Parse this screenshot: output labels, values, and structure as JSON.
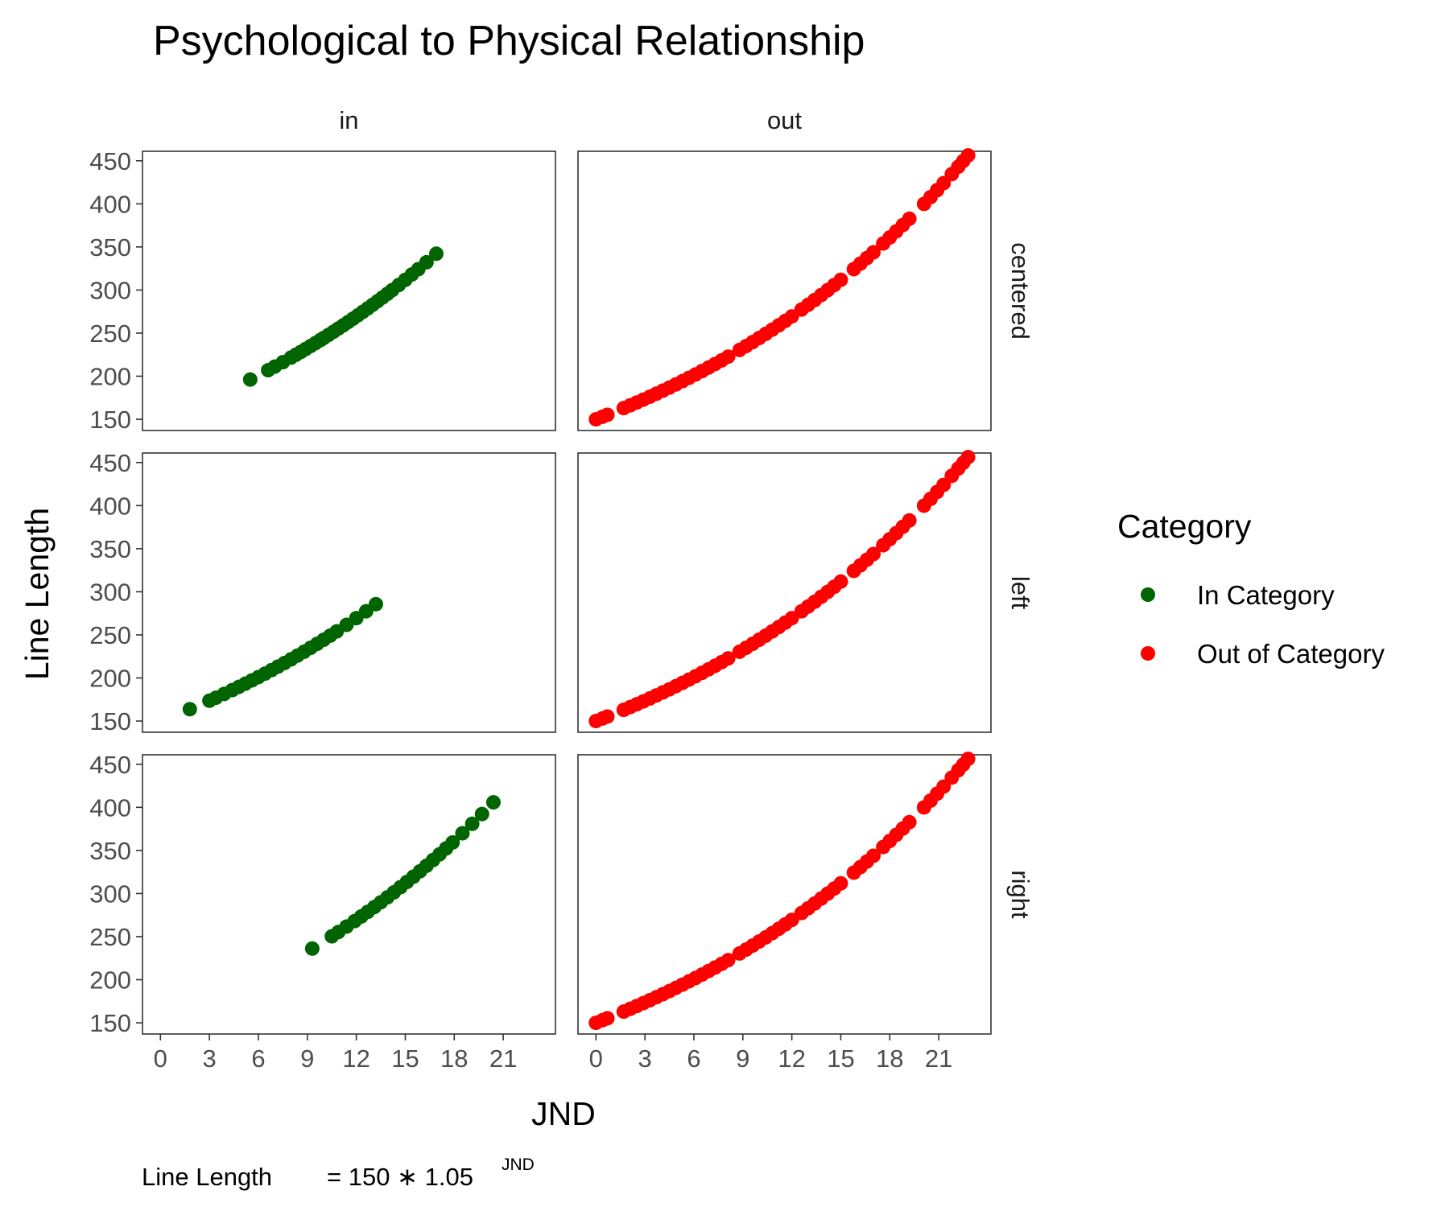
{
  "chart_data": {
    "type": "scatter",
    "title": "Psychological to Physical Relationship",
    "xlabel": "JND",
    "ylabel": "Line Length",
    "caption": {
      "lhs": "Line Length",
      "rhs": "= 150 ∗ 1.05",
      "exponent": "JND"
    },
    "facet_cols": [
      "in",
      "out"
    ],
    "facet_rows": [
      "centered",
      "left",
      "right"
    ],
    "xlim": [
      -1.1,
      24.2
    ],
    "ylim": [
      137,
      461
    ],
    "x_ticks": [
      0,
      3,
      6,
      9,
      12,
      15,
      18,
      21
    ],
    "x_tick_labels": [
      "0",
      "3",
      "6",
      "9",
      "12",
      "15",
      "18",
      "21"
    ],
    "y_ticks": [
      150,
      200,
      250,
      300,
      350,
      400,
      450
    ],
    "y_tick_labels": [
      "150",
      "200",
      "250",
      "300",
      "350",
      "400",
      "450"
    ],
    "grid": false,
    "legend": {
      "title": "Category",
      "position": "right",
      "items": [
        {
          "label": "In Category",
          "color": "#006400"
        },
        {
          "label": "Out of Category",
          "color": "#ff0000"
        }
      ]
    },
    "formula": {
      "base": 150,
      "growth": 1.05
    },
    "panels": [
      {
        "row": "centered",
        "col": "in",
        "series": "In Category",
        "x": [
          5.5,
          6.6,
          7.0,
          7.5,
          8.0,
          8.3,
          8.6,
          8.9,
          9.2,
          9.5,
          9.8,
          10.0,
          10.3,
          10.6,
          10.9,
          11.2,
          11.5,
          11.8,
          12.1,
          12.4,
          12.7,
          13.0,
          13.3,
          13.6,
          13.9,
          14.2,
          14.6,
          15.0,
          15.4,
          15.8,
          16.3,
          16.9
        ]
      },
      {
        "row": "left",
        "col": "in",
        "series": "In Category",
        "x": [
          1.8,
          3.0,
          3.4,
          3.9,
          4.4,
          4.8,
          5.2,
          5.6,
          6.0,
          6.4,
          6.8,
          7.2,
          7.6,
          8.0,
          8.4,
          8.8,
          9.2,
          9.6,
          10.0,
          10.4,
          10.8,
          11.4,
          12.0,
          12.6,
          13.2
        ]
      },
      {
        "row": "right",
        "col": "in",
        "series": "In Category",
        "x": [
          9.3,
          10.5,
          10.9,
          11.4,
          11.9,
          12.3,
          12.7,
          13.1,
          13.5,
          13.9,
          14.3,
          14.7,
          15.1,
          15.5,
          15.9,
          16.3,
          16.7,
          17.1,
          17.5,
          17.9,
          18.5,
          19.1,
          19.7,
          20.4
        ]
      },
      {
        "row": "centered",
        "col": "out",
        "series": "Out of Category",
        "x": [
          0.0,
          0.4,
          0.7,
          1.7,
          2.1,
          2.5,
          2.9,
          3.3,
          3.7,
          4.1,
          4.5,
          4.9,
          5.3,
          5.7,
          6.1,
          6.5,
          6.9,
          7.3,
          7.7,
          8.1,
          8.8,
          9.2,
          9.6,
          10.0,
          10.4,
          10.8,
          11.2,
          11.6,
          12.0,
          12.6,
          13.0,
          13.4,
          13.8,
          14.2,
          14.6,
          15.0,
          15.8,
          16.2,
          16.6,
          17.0,
          17.6,
          18.0,
          18.4,
          18.8,
          19.2,
          20.1,
          20.5,
          20.9,
          21.3,
          21.8,
          22.2,
          22.5,
          22.8
        ]
      },
      {
        "row": "left",
        "col": "out",
        "series": "Out of Category",
        "x": [
          0.0,
          0.4,
          0.7,
          1.7,
          2.1,
          2.5,
          2.9,
          3.3,
          3.7,
          4.1,
          4.5,
          4.9,
          5.3,
          5.7,
          6.1,
          6.5,
          6.9,
          7.3,
          7.7,
          8.1,
          8.8,
          9.2,
          9.6,
          10.0,
          10.4,
          10.8,
          11.2,
          11.6,
          12.0,
          12.6,
          13.0,
          13.4,
          13.8,
          14.2,
          14.6,
          15.0,
          15.8,
          16.2,
          16.6,
          17.0,
          17.6,
          18.0,
          18.4,
          18.8,
          19.2,
          20.1,
          20.5,
          20.9,
          21.3,
          21.8,
          22.2,
          22.5,
          22.8
        ]
      },
      {
        "row": "right",
        "col": "out",
        "series": "Out of Category",
        "x": [
          0.0,
          0.4,
          0.7,
          1.7,
          2.1,
          2.5,
          2.9,
          3.3,
          3.7,
          4.1,
          4.5,
          4.9,
          5.3,
          5.7,
          6.1,
          6.5,
          6.9,
          7.3,
          7.7,
          8.1,
          8.8,
          9.2,
          9.6,
          10.0,
          10.4,
          10.8,
          11.2,
          11.6,
          12.0,
          12.6,
          13.0,
          13.4,
          13.8,
          14.2,
          14.6,
          15.0,
          15.8,
          16.2,
          16.6,
          17.0,
          17.6,
          18.0,
          18.4,
          18.8,
          19.2,
          20.1,
          20.5,
          20.9,
          21.3,
          21.8,
          22.2,
          22.5,
          22.8
        ]
      }
    ]
  }
}
